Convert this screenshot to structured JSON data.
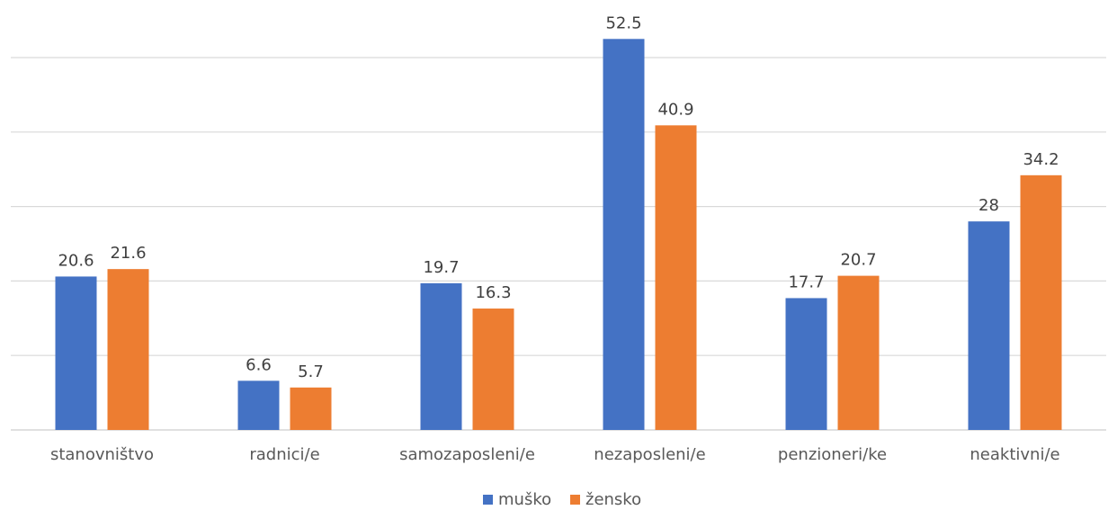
{
  "chart_data": {
    "type": "bar",
    "title": "",
    "xlabel": "",
    "ylabel": "",
    "ylim": [
      0,
      50
    ],
    "grid": true,
    "legend": "bottom",
    "categories": [
      "stanovništvo",
      "radnici/e",
      "samozaposleni/e",
      "nezaposleni/e",
      "penzioneri/ke",
      "neaktivni/e"
    ],
    "series": [
      {
        "name": "muško",
        "color": "#4472C4",
        "values": [
          20.6,
          6.6,
          19.7,
          52.5,
          17.7,
          28
        ]
      },
      {
        "name": "žensko",
        "color": "#ED7D31",
        "values": [
          21.6,
          5.7,
          16.3,
          40.9,
          20.7,
          34.2
        ]
      }
    ]
  }
}
